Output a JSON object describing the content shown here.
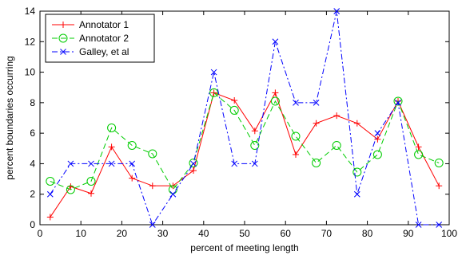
{
  "chart_data": {
    "type": "line",
    "xlabel": "percent of meeting length",
    "ylabel": "percent boundaries occurring",
    "xlim": [
      0,
      100
    ],
    "ylim": [
      0,
      14
    ],
    "xticks": [
      0,
      10,
      20,
      30,
      40,
      50,
      60,
      70,
      80,
      90,
      100
    ],
    "yticks": [
      0,
      2,
      4,
      6,
      8,
      10,
      12,
      14
    ],
    "x": [
      2.5,
      7.5,
      12.5,
      17.5,
      22.5,
      27.5,
      32.5,
      37.5,
      42.5,
      47.5,
      52.5,
      57.5,
      62.5,
      67.5,
      72.5,
      77.5,
      82.5,
      87.5,
      92.5,
      97.5
    ],
    "legend_position": "top-left",
    "grid": false,
    "series": [
      {
        "name": "Annotator 1",
        "color": "#ff0000",
        "marker": "plus",
        "line_style": "solid",
        "values": [
          0.5,
          2.5,
          2.05,
          5.1,
          3.05,
          2.55,
          2.55,
          3.55,
          8.65,
          8.15,
          6.15,
          8.65,
          4.6,
          6.65,
          7.15,
          6.65,
          5.6,
          8.1,
          5.1,
          2.55
        ]
      },
      {
        "name": "Annotator 2",
        "color": "#00cc00",
        "marker": "circle",
        "line_style": "dashed",
        "values": [
          2.85,
          2.3,
          2.85,
          6.35,
          5.2,
          4.65,
          2.3,
          4.05,
          8.65,
          7.5,
          5.2,
          8.1,
          5.8,
          4.05,
          5.2,
          3.45,
          4.6,
          8.1,
          4.6,
          4.05
        ]
      },
      {
        "name": "Galley, et al",
        "color": "#0000ff",
        "marker": "x",
        "line_style": "dashdot",
        "values": [
          2,
          4,
          4,
          4,
          4,
          0,
          2,
          4,
          10,
          4,
          4,
          12,
          8,
          8,
          14,
          2,
          6,
          8,
          0,
          0
        ]
      }
    ]
  }
}
